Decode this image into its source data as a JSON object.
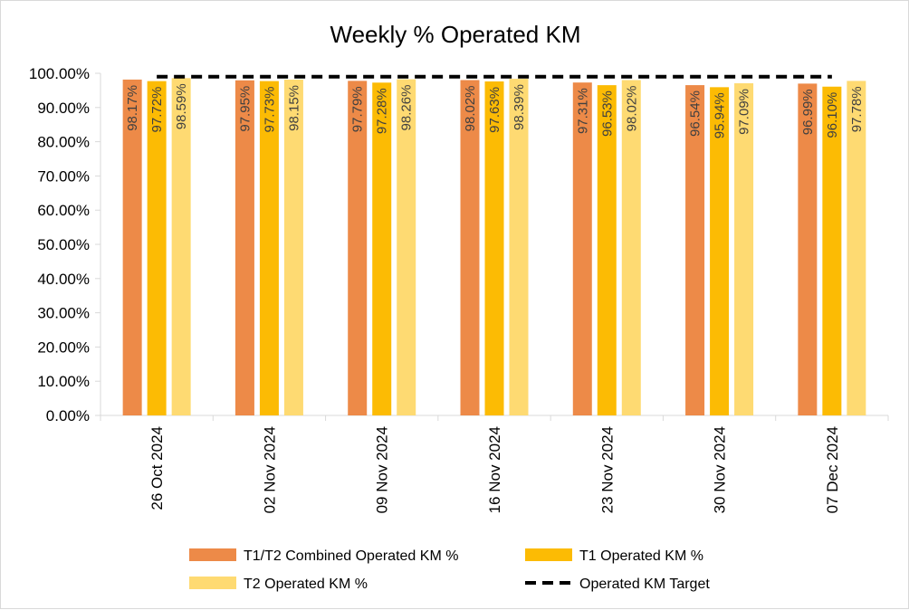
{
  "chart_data": {
    "type": "bar",
    "title": "Weekly % Operated KM",
    "xlabel": "",
    "ylabel": "",
    "ylim": [
      0,
      100
    ],
    "ytick_step": 10,
    "ytick_labels": [
      "0.00%",
      "10.00%",
      "20.00%",
      "30.00%",
      "40.00%",
      "50.00%",
      "60.00%",
      "70.00%",
      "80.00%",
      "90.00%",
      "100.00%"
    ],
    "categories": [
      "26 Oct 2024",
      "02 Nov 2024",
      "09 Nov 2024",
      "16 Nov 2024",
      "23 Nov 2024",
      "30 Nov 2024",
      "07 Dec 2024"
    ],
    "series": [
      {
        "name": "T1/T2 Combined Operated KM %",
        "color": "#ED8A48",
        "values": [
          98.17,
          97.95,
          97.79,
          98.02,
          97.31,
          96.54,
          96.99
        ],
        "labels": [
          "98.17%",
          "97.95%",
          "97.79%",
          "98.02%",
          "97.31%",
          "96.54%",
          "96.99%"
        ]
      },
      {
        "name": "T1 Operated KM %",
        "color": "#FCBB04",
        "values": [
          97.72,
          97.73,
          97.28,
          97.63,
          96.53,
          95.94,
          96.1
        ],
        "labels": [
          "97.72%",
          "97.73%",
          "97.28%",
          "97.63%",
          "96.53%",
          "95.94%",
          "96.10%"
        ]
      },
      {
        "name": "T2 Operated KM %",
        "color": "#FEDA72",
        "values": [
          98.59,
          98.15,
          98.26,
          98.39,
          98.02,
          97.09,
          97.78
        ],
        "labels": [
          "98.59%",
          "98.15%",
          "98.26%",
          "98.39%",
          "98.02%",
          "97.09%",
          "97.78%"
        ]
      }
    ],
    "target": {
      "name": "Operated KM Target",
      "value": 99,
      "color": "#000000",
      "style": "dashed"
    },
    "grid": false,
    "legend_position": "bottom"
  }
}
